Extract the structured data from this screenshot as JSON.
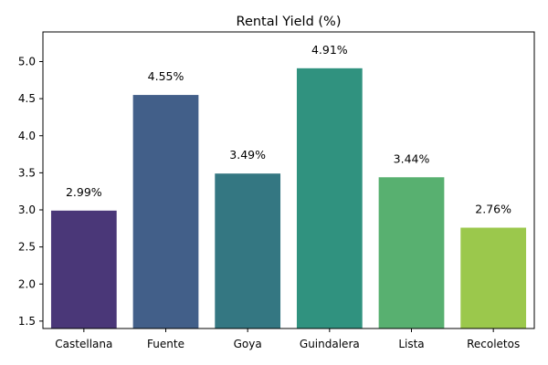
{
  "chart_data": {
    "type": "bar",
    "title": "Rental Yield (%)",
    "xlabel": "",
    "ylabel": "",
    "categories": [
      "Castellana",
      "Fuente",
      "Goya",
      "Guindalera",
      "Lista",
      "Recoletos"
    ],
    "values": [
      2.99,
      4.55,
      3.49,
      4.91,
      3.44,
      2.76
    ],
    "value_labels": [
      "2.99%",
      "4.55%",
      "3.49%",
      "4.91%",
      "3.44%",
      "2.76%"
    ],
    "colors": [
      "#4a3778",
      "#425f89",
      "#347782",
      "#30927f",
      "#58b070",
      "#9bc84c"
    ],
    "ylim": [
      1.4,
      5.4
    ],
    "yticks": [
      1.5,
      2.0,
      2.5,
      3.0,
      3.5,
      4.0,
      4.5,
      5.0
    ],
    "ytick_labels": [
      "1.5",
      "2.0",
      "2.5",
      "3.0",
      "3.5",
      "4.0",
      "4.5",
      "5.0"
    ],
    "grid": false,
    "legend": "none"
  }
}
